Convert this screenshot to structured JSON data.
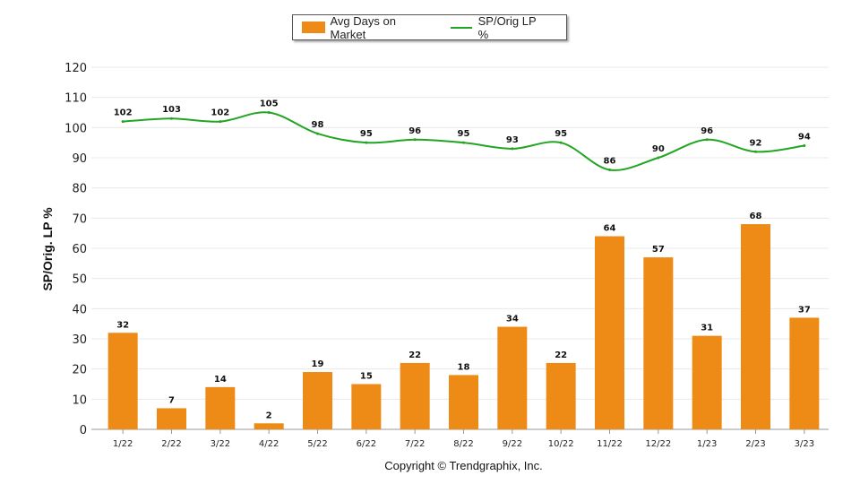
{
  "colors": {
    "bar": "#EE8B16",
    "line": "#22A522",
    "grid": "#e8e8e8",
    "axis": "#999999"
  },
  "chart_data": {
    "type": "bar+line",
    "categories": [
      "1/22",
      "2/22",
      "3/22",
      "4/22",
      "5/22",
      "6/22",
      "7/22",
      "8/22",
      "9/22",
      "10/22",
      "11/22",
      "12/22",
      "1/23",
      "2/23",
      "3/23"
    ],
    "series": [
      {
        "name": "Avg Days on Market",
        "type": "bar",
        "values": [
          32,
          7,
          14,
          2,
          19,
          15,
          22,
          18,
          34,
          22,
          64,
          57,
          31,
          68,
          37
        ]
      },
      {
        "name": "SP/Orig LP %",
        "type": "line",
        "values": [
          102,
          103,
          102,
          105,
          98,
          95,
          96,
          95,
          93,
          95,
          86,
          90,
          96,
          92,
          94
        ]
      }
    ],
    "ylabel": "SP/Orig. LP %",
    "ylim": [
      0,
      120
    ],
    "yticks": [
      0,
      10,
      20,
      30,
      40,
      50,
      60,
      70,
      80,
      90,
      100,
      110,
      120
    ],
    "grid": true,
    "legend_position": "top"
  },
  "footer": {
    "copyright": "Copyright © Trendgraphix, Inc."
  }
}
